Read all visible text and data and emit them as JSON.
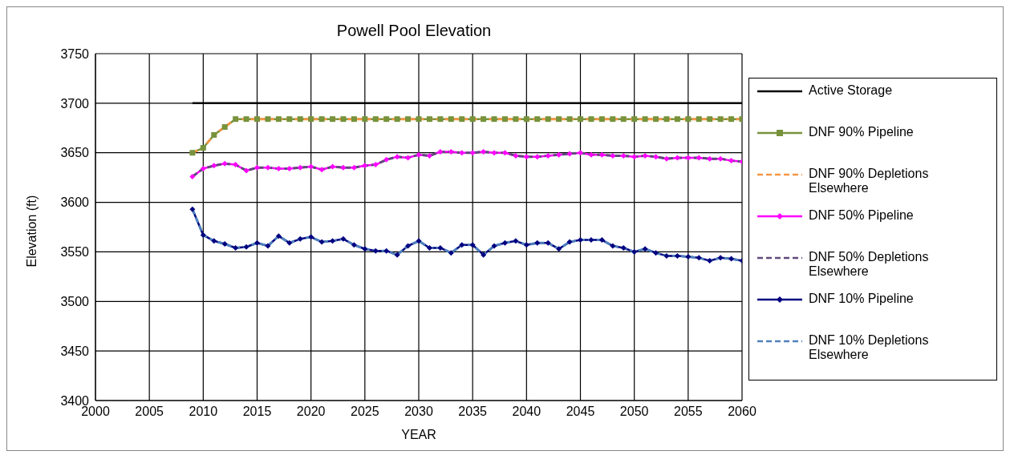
{
  "chart_data": {
    "type": "line",
    "title": "Powell Pool Elevation",
    "xlabel": "YEAR",
    "ylabel": "Elevation (ft)",
    "x": [
      2009,
      2010,
      2011,
      2012,
      2013,
      2014,
      2015,
      2016,
      2017,
      2018,
      2019,
      2020,
      2021,
      2022,
      2023,
      2024,
      2025,
      2026,
      2027,
      2028,
      2029,
      2030,
      2031,
      2032,
      2033,
      2034,
      2035,
      2036,
      2037,
      2038,
      2039,
      2040,
      2041,
      2042,
      2043,
      2044,
      2045,
      2046,
      2047,
      2048,
      2049,
      2050,
      2051,
      2052,
      2053,
      2054,
      2055,
      2056,
      2057,
      2058,
      2059,
      2060
    ],
    "xlim": [
      2000,
      2060
    ],
    "xticks": [
      2000,
      2005,
      2010,
      2015,
      2020,
      2025,
      2030,
      2035,
      2040,
      2045,
      2050,
      2055,
      2060
    ],
    "ylim": [
      3400,
      3750
    ],
    "yticks": [
      3400,
      3450,
      3500,
      3550,
      3600,
      3650,
      3700,
      3750
    ],
    "grid": true,
    "legend": "right",
    "series": [
      {
        "name": "Active Storage",
        "color": "#000000",
        "marker": "none",
        "line_style": "solid",
        "values": [
          3700,
          3700,
          3700,
          3700,
          3700,
          3700,
          3700,
          3700,
          3700,
          3700,
          3700,
          3700,
          3700,
          3700,
          3700,
          3700,
          3700,
          3700,
          3700,
          3700,
          3700,
          3700,
          3700,
          3700,
          3700,
          3700,
          3700,
          3700,
          3700,
          3700,
          3700,
          3700,
          3700,
          3700,
          3700,
          3700,
          3700,
          3700,
          3700,
          3700,
          3700,
          3700,
          3700,
          3700,
          3700,
          3700,
          3700,
          3700,
          3700,
          3700,
          3700,
          3700
        ]
      },
      {
        "name": "DNF 90% Pipeline",
        "color": "#77933c",
        "marker": "square",
        "line_style": "solid",
        "values": [
          3650,
          3655,
          3668,
          3676,
          3684,
          3684,
          3684,
          3684,
          3684,
          3684,
          3684,
          3684,
          3684,
          3684,
          3684,
          3684,
          3684,
          3684,
          3684,
          3684,
          3684,
          3684,
          3684,
          3684,
          3684,
          3684,
          3684,
          3684,
          3684,
          3684,
          3684,
          3684,
          3684,
          3684,
          3684,
          3684,
          3684,
          3684,
          3684,
          3684,
          3684,
          3684,
          3684,
          3684,
          3684,
          3684,
          3684,
          3684,
          3684,
          3684,
          3684,
          3684
        ]
      },
      {
        "name": "DNF 90% Depletions Elsewhere",
        "color": "#f79646",
        "marker": "none",
        "line_style": "dashed",
        "values": [
          3650,
          3655,
          3668,
          3676,
          3684,
          3684,
          3684,
          3684,
          3684,
          3684,
          3684,
          3684,
          3684,
          3684,
          3684,
          3684,
          3684,
          3684,
          3684,
          3684,
          3684,
          3684,
          3684,
          3684,
          3684,
          3684,
          3684,
          3684,
          3684,
          3684,
          3684,
          3684,
          3684,
          3684,
          3684,
          3684,
          3684,
          3684,
          3684,
          3684,
          3684,
          3684,
          3684,
          3684,
          3684,
          3684,
          3684,
          3684,
          3684,
          3684,
          3684,
          3684
        ]
      },
      {
        "name": "DNF 50% Pipeline",
        "color": "#ff00ff",
        "marker": "diamond",
        "line_style": "solid",
        "values": [
          3626,
          3634,
          3637,
          3639,
          3638,
          3632,
          3635,
          3635,
          3634,
          3634,
          3635,
          3636,
          3633,
          3636,
          3635,
          3635,
          3637,
          3638,
          3643,
          3646,
          3645,
          3648,
          3647,
          3651,
          3651,
          3650,
          3650,
          3651,
          3650,
          3650,
          3647,
          3646,
          3646,
          3647,
          3648,
          3649,
          3650,
          3648,
          3648,
          3647,
          3647,
          3646,
          3647,
          3646,
          3644,
          3645,
          3645,
          3645,
          3644,
          3644,
          3642,
          3641
        ]
      },
      {
        "name": "DNF 50% Depletions Elsewhere",
        "color": "#604a7b",
        "marker": "none",
        "line_style": "dashed",
        "values": [
          3626,
          3634,
          3637,
          3639,
          3638,
          3632,
          3635,
          3635,
          3634,
          3634,
          3635,
          3636,
          3633,
          3636,
          3635,
          3635,
          3637,
          3638,
          3643,
          3646,
          3645,
          3648,
          3647,
          3651,
          3651,
          3650,
          3650,
          3651,
          3650,
          3650,
          3647,
          3646,
          3646,
          3647,
          3648,
          3649,
          3650,
          3648,
          3648,
          3647,
          3647,
          3646,
          3647,
          3646,
          3644,
          3645,
          3645,
          3645,
          3644,
          3644,
          3642,
          3641
        ]
      },
      {
        "name": "DNF 10% Pipeline",
        "color": "#000080",
        "marker": "diamond",
        "line_style": "solid",
        "values": [
          3593,
          3567,
          3561,
          3558,
          3554,
          3555,
          3559,
          3556,
          3566,
          3559,
          3563,
          3565,
          3560,
          3561,
          3563,
          3557,
          3553,
          3551,
          3551,
          3547,
          3556,
          3561,
          3554,
          3554,
          3549,
          3557,
          3557,
          3547,
          3556,
          3559,
          3561,
          3557,
          3559,
          3559,
          3553,
          3560,
          3562,
          3562,
          3562,
          3556,
          3554,
          3550,
          3553,
          3549,
          3546,
          3546,
          3545,
          3544,
          3541,
          3544,
          3543,
          3541
        ]
      },
      {
        "name": "DNF 10% Depletions Elsewhere",
        "color": "#4f81bd",
        "marker": "none",
        "line_style": "dashed",
        "values": [
          3593,
          3567,
          3561,
          3558,
          3554,
          3555,
          3559,
          3556,
          3566,
          3559,
          3563,
          3565,
          3560,
          3561,
          3563,
          3557,
          3553,
          3551,
          3551,
          3547,
          3556,
          3561,
          3554,
          3554,
          3549,
          3557,
          3557,
          3547,
          3556,
          3559,
          3561,
          3557,
          3559,
          3559,
          3553,
          3560,
          3562,
          3562,
          3562,
          3556,
          3554,
          3550,
          3553,
          3549,
          3546,
          3546,
          3545,
          3544,
          3541,
          3544,
          3543,
          3541
        ]
      }
    ]
  }
}
